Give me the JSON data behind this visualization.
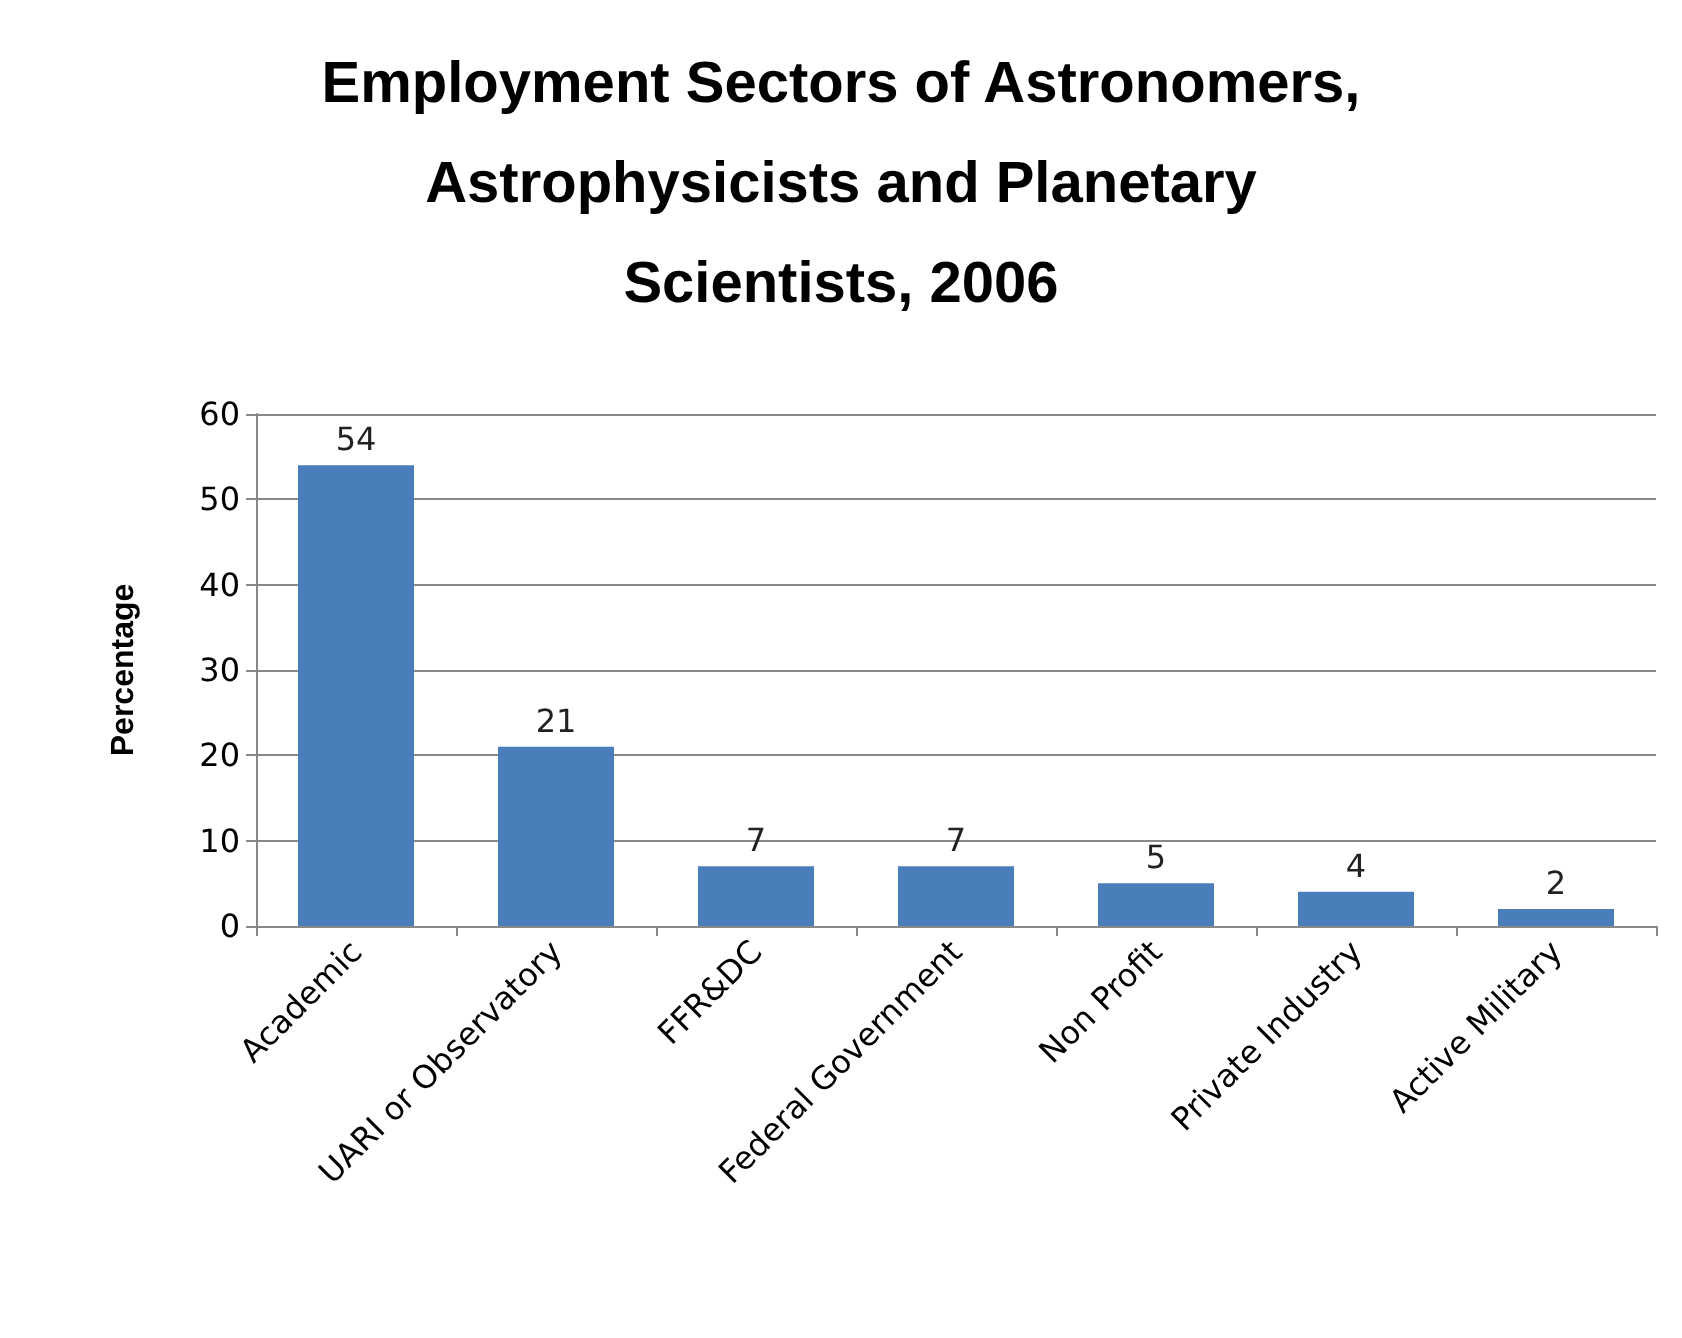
{
  "chart_data": {
    "type": "bar",
    "title": "Employment Sectors of Astronomers,\nAstrophysicists and Planetary\nScientists, 2006",
    "ylabel": "Percentage",
    "categories": [
      "Academic",
      "UARI or Observatory",
      "FFR&DC",
      "Federal Government",
      "Non Profit",
      "Private Industry",
      "Active Military"
    ],
    "values": [
      54,
      21,
      7,
      7,
      5,
      4,
      2
    ],
    "color": "#4a7ebb",
    "ylim": [
      0,
      60
    ],
    "yticks": [
      0,
      10,
      20,
      30,
      40,
      50,
      60
    ],
    "grid": "y",
    "data_labels": true
  }
}
